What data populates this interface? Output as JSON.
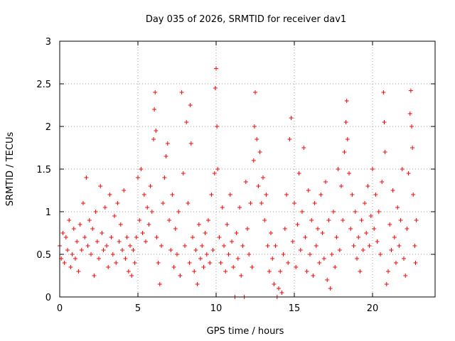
{
  "chart_data": {
    "type": "scatter",
    "title": "Day 035 of 2026, SRMTID for receiver dav1",
    "xlabel": "GPS time / hours",
    "ylabel": "SRMTID / TECUs",
    "xlim": [
      0,
      24
    ],
    "ylim": [
      0,
      3
    ],
    "xticks": [
      0,
      5,
      10,
      15,
      20
    ],
    "xtick_labels": [
      "0",
      "5",
      "10",
      "15",
      "20"
    ],
    "yticks": [
      0,
      0.5,
      1,
      1.5,
      2,
      2.5,
      3
    ],
    "ytick_labels": [
      "0",
      "0.5",
      "1",
      "1.5",
      "2",
      "2.5",
      "3"
    ],
    "grid": true,
    "marker": "plus",
    "series": [
      {
        "name": "SRMTID",
        "color": "#ff0000",
        "points": [
          [
            0.0,
            0.6
          ],
          [
            0.1,
            0.45
          ],
          [
            0.2,
            0.75
          ],
          [
            0.3,
            0.4
          ],
          [
            0.4,
            0.7
          ],
          [
            0.5,
            0.55
          ],
          [
            0.6,
            0.9
          ],
          [
            0.7,
            0.35
          ],
          [
            0.8,
            0.5
          ],
          [
            0.9,
            0.8
          ],
          [
            1.0,
            0.45
          ],
          [
            1.1,
            0.65
          ],
          [
            1.2,
            0.3
          ],
          [
            1.3,
            0.85
          ],
          [
            1.4,
            0.55
          ],
          [
            1.5,
            1.1
          ],
          [
            1.6,
            0.7
          ],
          [
            1.7,
            1.4
          ],
          [
            1.8,
            0.6
          ],
          [
            1.9,
            0.9
          ],
          [
            2.0,
            0.5
          ],
          [
            2.1,
            0.8
          ],
          [
            2.2,
            0.25
          ],
          [
            2.3,
            1.0
          ],
          [
            2.4,
            0.65
          ],
          [
            2.5,
            0.45
          ],
          [
            2.6,
            1.3
          ],
          [
            2.7,
            0.75
          ],
          [
            2.8,
            0.55
          ],
          [
            2.9,
            1.05
          ],
          [
            3.0,
            0.6
          ],
          [
            3.1,
            0.35
          ],
          [
            3.2,
            1.2
          ],
          [
            3.3,
            0.7
          ],
          [
            3.4,
            0.5
          ],
          [
            3.5,
            0.95
          ],
          [
            3.6,
            0.4
          ],
          [
            3.7,
            1.1
          ],
          [
            3.8,
            0.65
          ],
          [
            3.9,
            0.85
          ],
          [
            4.0,
            0.55
          ],
          [
            4.1,
            1.25
          ],
          [
            4.2,
            0.45
          ],
          [
            4.3,
            0.7
          ],
          [
            4.4,
            0.3
          ],
          [
            4.5,
            0.6
          ],
          [
            4.6,
            0.25
          ],
          [
            4.7,
            0.55
          ],
          [
            4.8,
            0.4
          ],
          [
            4.9,
            0.7
          ],
          [
            5.0,
            1.4
          ],
          [
            5.1,
            0.9
          ],
          [
            5.2,
            1.5
          ],
          [
            5.3,
            0.75
          ],
          [
            5.4,
            1.2
          ],
          [
            5.5,
            0.65
          ],
          [
            5.6,
            1.05
          ],
          [
            5.7,
            0.85
          ],
          [
            5.8,
            1.3
          ],
          [
            5.9,
            1.0
          ],
          [
            6.0,
            1.85
          ],
          [
            6.05,
            2.2
          ],
          [
            6.1,
            2.4
          ],
          [
            6.15,
            1.95
          ],
          [
            6.2,
            0.7
          ],
          [
            6.3,
            0.4
          ],
          [
            6.4,
            0.15
          ],
          [
            6.5,
            0.6
          ],
          [
            6.6,
            1.1
          ],
          [
            6.7,
            1.4
          ],
          [
            6.8,
            1.65
          ],
          [
            6.9,
            1.8
          ],
          [
            7.0,
            0.9
          ],
          [
            7.1,
            0.55
          ],
          [
            7.2,
            1.2
          ],
          [
            7.3,
            0.35
          ],
          [
            7.4,
            0.8
          ],
          [
            7.5,
            0.5
          ],
          [
            7.6,
            1.0
          ],
          [
            7.7,
            0.25
          ],
          [
            7.8,
            2.4
          ],
          [
            7.9,
            1.45
          ],
          [
            8.0,
            0.6
          ],
          [
            8.1,
            2.05
          ],
          [
            8.2,
            1.1
          ],
          [
            8.3,
            0.4
          ],
          [
            8.35,
            2.25
          ],
          [
            8.4,
            1.8
          ],
          [
            8.5,
            0.7
          ],
          [
            8.6,
            0.3
          ],
          [
            8.7,
            0.55
          ],
          [
            8.8,
            0.15
          ],
          [
            8.9,
            0.85
          ],
          [
            9.0,
            0.45
          ],
          [
            9.1,
            0.6
          ],
          [
            9.2,
            0.35
          ],
          [
            9.3,
            0.75
          ],
          [
            9.4,
            0.5
          ],
          [
            9.5,
            0.9
          ],
          [
            9.6,
            0.4
          ],
          [
            9.7,
            1.2
          ],
          [
            9.8,
            0.55
          ],
          [
            9.9,
            1.45
          ],
          [
            9.95,
            2.45
          ],
          [
            10.0,
            2.68
          ],
          [
            10.05,
            2.0
          ],
          [
            10.1,
            1.5
          ],
          [
            10.2,
            0.7
          ],
          [
            10.3,
            0.4
          ],
          [
            10.4,
            1.05
          ],
          [
            10.5,
            0.6
          ],
          [
            10.6,
            0.3
          ],
          [
            10.7,
            0.85
          ],
          [
            10.8,
            0.5
          ],
          [
            10.9,
            1.2
          ],
          [
            11.0,
            0.65
          ],
          [
            11.1,
            0.35
          ],
          [
            11.2,
            0.0
          ],
          [
            11.3,
            0.75
          ],
          [
            11.4,
            0.45
          ],
          [
            11.5,
            1.05
          ],
          [
            11.6,
            0.25
          ],
          [
            11.7,
            0.6
          ],
          [
            11.8,
            0.0
          ],
          [
            11.9,
            1.35
          ],
          [
            12.0,
            0.8
          ],
          [
            12.1,
            0.5
          ],
          [
            12.2,
            1.1
          ],
          [
            12.3,
            0.35
          ],
          [
            12.4,
            1.6
          ],
          [
            12.45,
            2.0
          ],
          [
            12.5,
            2.4
          ],
          [
            12.6,
            1.85
          ],
          [
            12.7,
            1.3
          ],
          [
            12.8,
            1.7
          ],
          [
            12.9,
            1.1
          ],
          [
            13.0,
            1.4
          ],
          [
            13.1,
            0.9
          ],
          [
            13.2,
            1.2
          ],
          [
            13.3,
            0.6
          ],
          [
            13.4,
            0.3
          ],
          [
            13.5,
            0.75
          ],
          [
            13.6,
            0.45
          ],
          [
            13.7,
            0.15
          ],
          [
            13.8,
            0.6
          ],
          [
            13.9,
            0.0
          ],
          [
            14.0,
            0.1
          ],
          [
            14.1,
            0.3
          ],
          [
            14.2,
            0.05
          ],
          [
            14.3,
            0.5
          ],
          [
            14.4,
            0.8
          ],
          [
            14.5,
            1.2
          ],
          [
            14.6,
            0.4
          ],
          [
            14.7,
            1.85
          ],
          [
            14.8,
            2.1
          ],
          [
            14.9,
            0.65
          ],
          [
            15.0,
            1.1
          ],
          [
            15.1,
            0.35
          ],
          [
            15.2,
            0.85
          ],
          [
            15.3,
            1.45
          ],
          [
            15.4,
            0.55
          ],
          [
            15.5,
            1.0
          ],
          [
            15.6,
            1.75
          ],
          [
            15.7,
            0.7
          ],
          [
            15.8,
            0.3
          ],
          [
            15.9,
            1.25
          ],
          [
            16.0,
            0.5
          ],
          [
            16.1,
            0.9
          ],
          [
            16.2,
            0.25
          ],
          [
            16.3,
            1.1
          ],
          [
            16.4,
            0.6
          ],
          [
            16.5,
            0.8
          ],
          [
            16.6,
            0.4
          ],
          [
            16.7,
            1.2
          ],
          [
            16.8,
            0.75
          ],
          [
            16.9,
            0.45
          ],
          [
            17.0,
            1.35
          ],
          [
            17.1,
            0.2
          ],
          [
            17.2,
            0.9
          ],
          [
            17.3,
            0.1
          ],
          [
            17.4,
            0.5
          ],
          [
            17.5,
            1.0
          ],
          [
            17.6,
            0.35
          ],
          [
            17.7,
            0.7
          ],
          [
            17.8,
            1.5
          ],
          [
            17.9,
            0.55
          ],
          [
            18.0,
            1.3
          ],
          [
            18.1,
            0.9
          ],
          [
            18.2,
            1.7
          ],
          [
            18.3,
            2.05
          ],
          [
            18.35,
            2.3
          ],
          [
            18.4,
            1.85
          ],
          [
            18.5,
            1.45
          ],
          [
            18.6,
            0.8
          ],
          [
            18.7,
            1.2
          ],
          [
            18.8,
            0.6
          ],
          [
            18.9,
            1.0
          ],
          [
            19.0,
            0.45
          ],
          [
            19.1,
            0.7
          ],
          [
            19.2,
            0.3
          ],
          [
            19.3,
            0.9
          ],
          [
            19.4,
            0.55
          ],
          [
            19.5,
            1.1
          ],
          [
            19.6,
            0.75
          ],
          [
            19.7,
            1.3
          ],
          [
            19.8,
            0.6
          ],
          [
            19.9,
            0.95
          ],
          [
            20.0,
            1.5
          ],
          [
            20.1,
            0.8
          ],
          [
            20.2,
            1.2
          ],
          [
            20.3,
            0.65
          ],
          [
            20.4,
            1.0
          ],
          [
            20.5,
            0.5
          ],
          [
            20.6,
            1.35
          ],
          [
            20.7,
            2.4
          ],
          [
            20.75,
            2.05
          ],
          [
            20.8,
            1.7
          ],
          [
            20.9,
            0.15
          ],
          [
            21.0,
            0.3
          ],
          [
            21.1,
            0.85
          ],
          [
            21.2,
            0.55
          ],
          [
            21.3,
            1.25
          ],
          [
            21.4,
            0.7
          ],
          [
            21.5,
            0.4
          ],
          [
            21.6,
            1.05
          ],
          [
            21.7,
            0.6
          ],
          [
            21.8,
            0.9
          ],
          [
            21.9,
            1.5
          ],
          [
            22.0,
            0.45
          ],
          [
            22.1,
            0.25
          ],
          [
            22.2,
            0.8
          ],
          [
            22.3,
            1.45
          ],
          [
            22.4,
            2.15
          ],
          [
            22.45,
            2.42
          ],
          [
            22.5,
            2.0
          ],
          [
            22.55,
            1.75
          ],
          [
            22.6,
            1.2
          ],
          [
            22.7,
            0.6
          ],
          [
            22.75,
            0.4
          ],
          [
            22.8,
            0.9
          ]
        ]
      }
    ]
  }
}
